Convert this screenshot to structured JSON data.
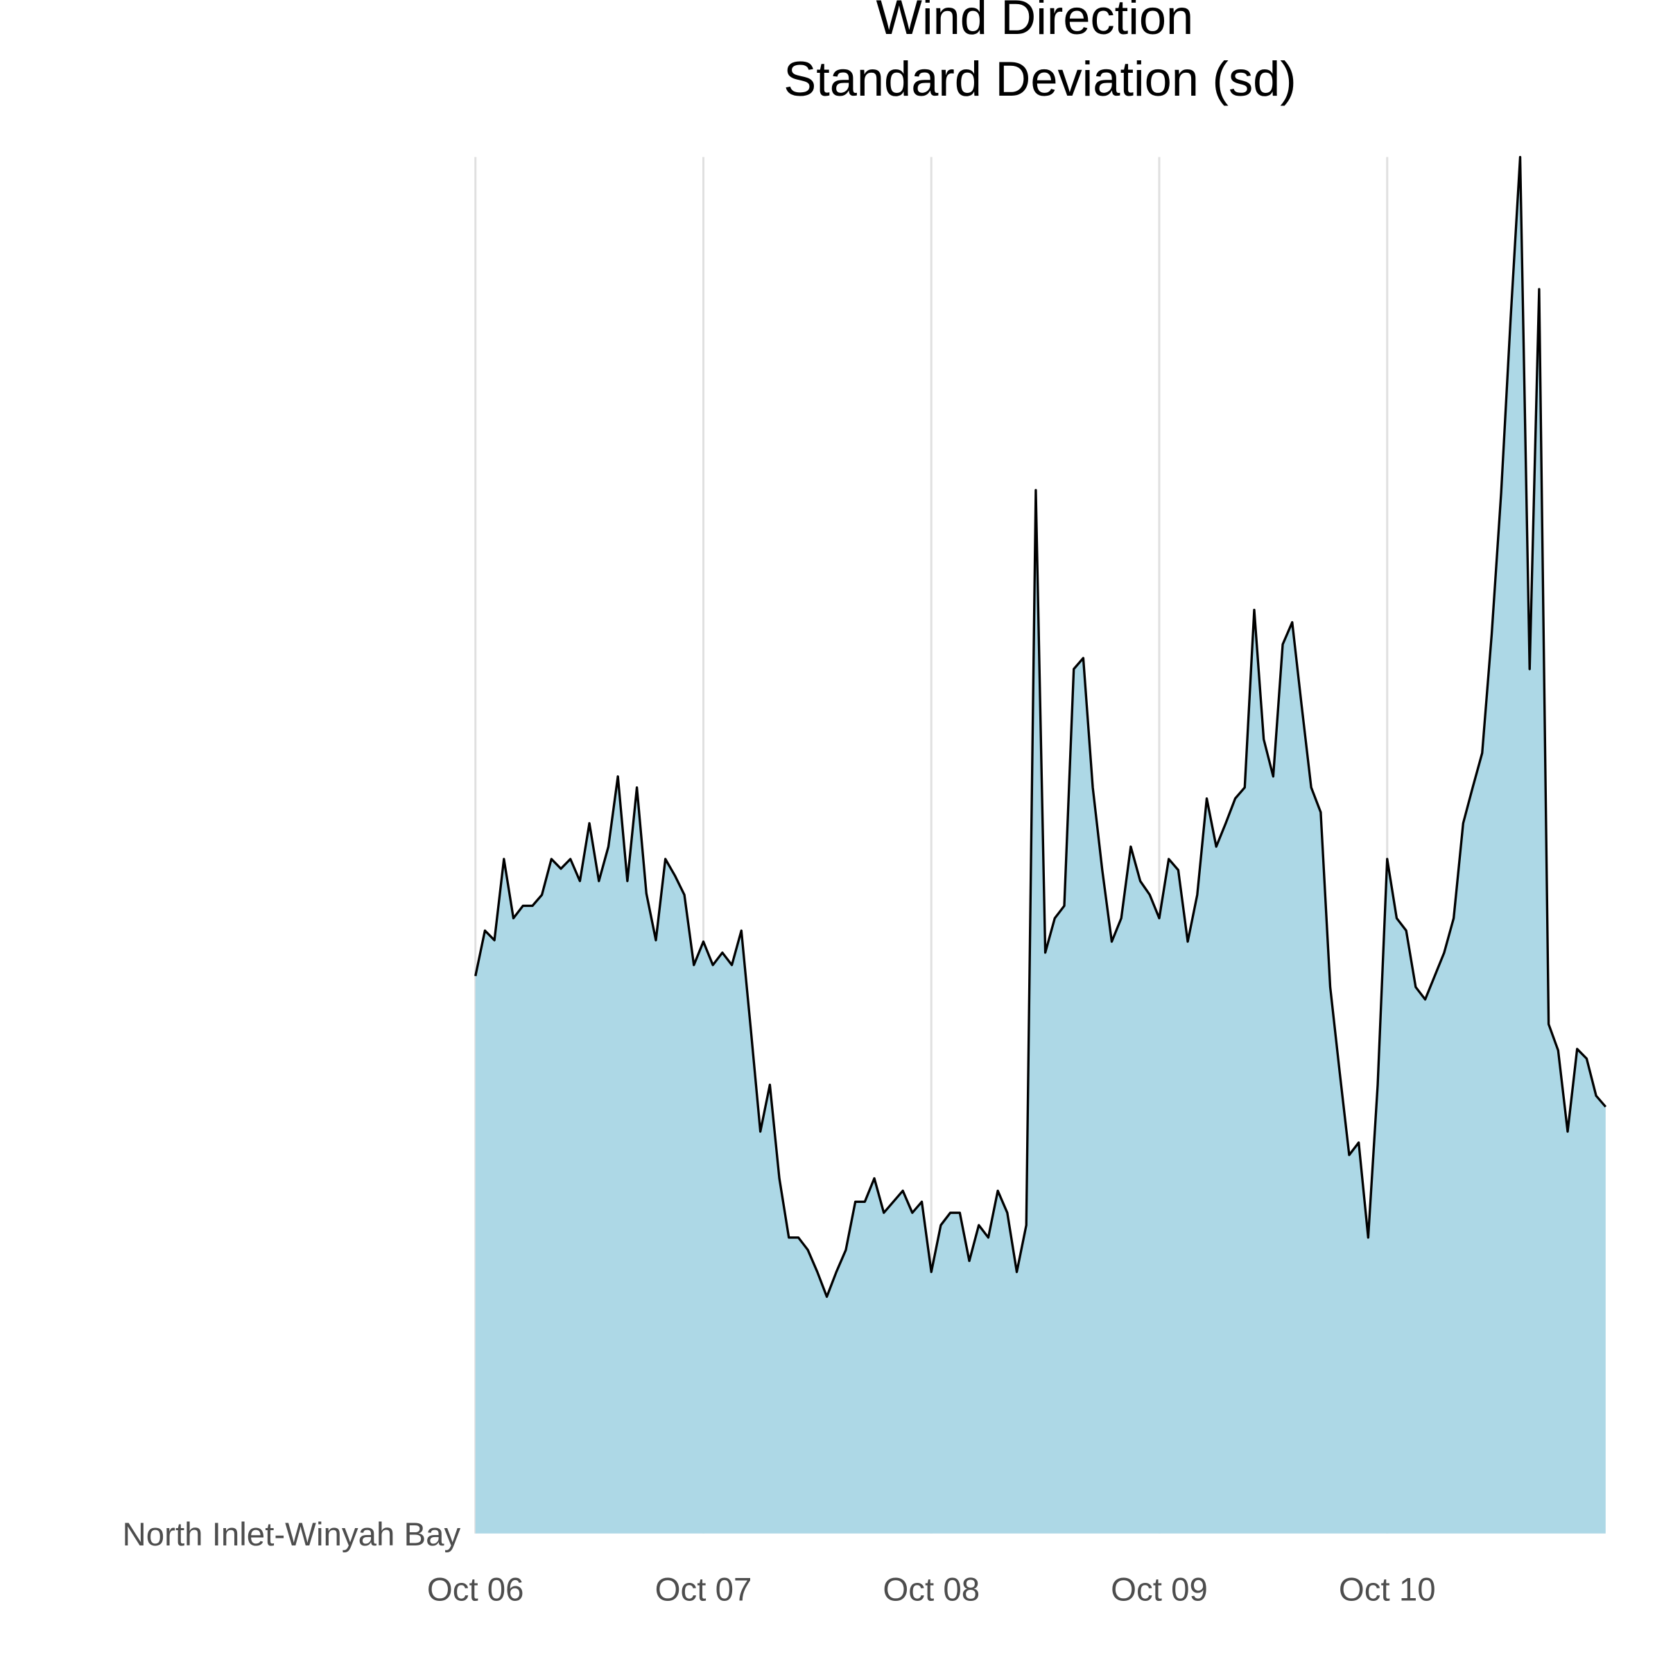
{
  "chart_data": {
    "type": "ridgeline",
    "title": "Wind Direction",
    "subtitle": "Standard Deviation (sd)",
    "categories": [
      "North Inlet-Winyah Bay"
    ],
    "x": [
      0,
      1,
      2,
      3,
      4,
      5,
      6,
      7,
      8,
      9,
      10,
      11,
      12,
      13,
      14,
      15,
      16,
      17,
      18,
      19,
      20,
      21,
      22,
      23,
      24,
      25,
      26,
      27,
      28,
      29,
      30,
      31,
      32,
      33,
      34,
      35,
      36,
      37,
      38,
      39,
      40,
      41,
      42,
      43,
      44,
      45,
      46,
      47,
      48,
      49,
      50,
      51,
      52,
      53,
      54,
      55,
      56,
      57,
      58,
      59,
      60,
      61,
      62,
      63,
      64,
      65,
      66,
      67,
      68,
      69,
      70,
      71,
      72,
      73,
      74,
      75,
      76,
      77,
      78,
      79,
      80,
      81,
      82,
      83,
      84,
      85,
      86,
      87,
      88,
      89,
      90,
      91,
      92,
      93,
      94,
      95,
      96,
      97,
      98,
      99,
      100,
      101,
      102,
      103,
      104,
      105,
      106,
      107,
      108,
      109,
      110,
      111,
      112,
      113,
      114,
      115,
      116,
      117,
      118,
      119
    ],
    "series": [
      {
        "color": "#add8e6",
        "line_color": "#000000",
        "values": [
          40.5,
          43.8,
          43.1,
          49.0,
          44.7,
          45.6,
          45.6,
          46.4,
          49.0,
          48.3,
          49.0,
          47.4,
          51.6,
          47.4,
          49.9,
          55.0,
          47.4,
          54.2,
          46.5,
          43.1,
          49.0,
          47.8,
          46.4,
          41.3,
          43.0,
          41.3,
          42.2,
          41.3,
          43.8,
          36.6,
          29.2,
          32.6,
          25.8,
          21.5,
          21.5,
          20.6,
          19.0,
          17.2,
          19.0,
          20.6,
          24.1,
          24.1,
          25.8,
          23.3,
          24.1,
          24.9,
          23.3,
          24.1,
          19.0,
          22.4,
          23.3,
          23.3,
          19.8,
          22.4,
          21.5,
          24.9,
          23.3,
          19.0,
          22.4,
          75.8,
          42.2,
          44.7,
          45.6,
          62.8,
          63.6,
          54.2,
          48.2,
          43.0,
          44.7,
          49.9,
          47.4,
          46.4,
          44.7,
          49.0,
          48.2,
          43.0,
          46.4,
          53.4,
          49.9,
          51.6,
          53.4,
          54.2,
          67.1,
          57.7,
          55.0,
          64.6,
          66.2,
          60.1,
          54.2,
          52.4,
          39.7,
          33.5,
          27.5,
          28.4,
          21.5,
          32.6,
          49.0,
          44.7,
          43.8,
          39.7,
          38.8,
          40.5,
          42.2,
          44.7,
          51.6,
          54.2,
          56.7,
          65.3,
          75.6,
          88.3,
          100,
          62.8,
          90.4,
          37.0,
          35.1,
          29.2,
          35.2,
          34.5,
          31.8,
          31.0
        ]
      }
    ],
    "xlim": [
      0,
      119
    ],
    "xticks": [
      {
        "value": 0,
        "label": "Oct 06"
      },
      {
        "value": 24,
        "label": "Oct 07"
      },
      {
        "value": 48,
        "label": "Oct 08"
      },
      {
        "value": 72,
        "label": "Oct 09"
      },
      {
        "value": 96,
        "label": "Oct 10"
      }
    ],
    "ylim": [
      0,
      100
    ],
    "grid": true
  }
}
